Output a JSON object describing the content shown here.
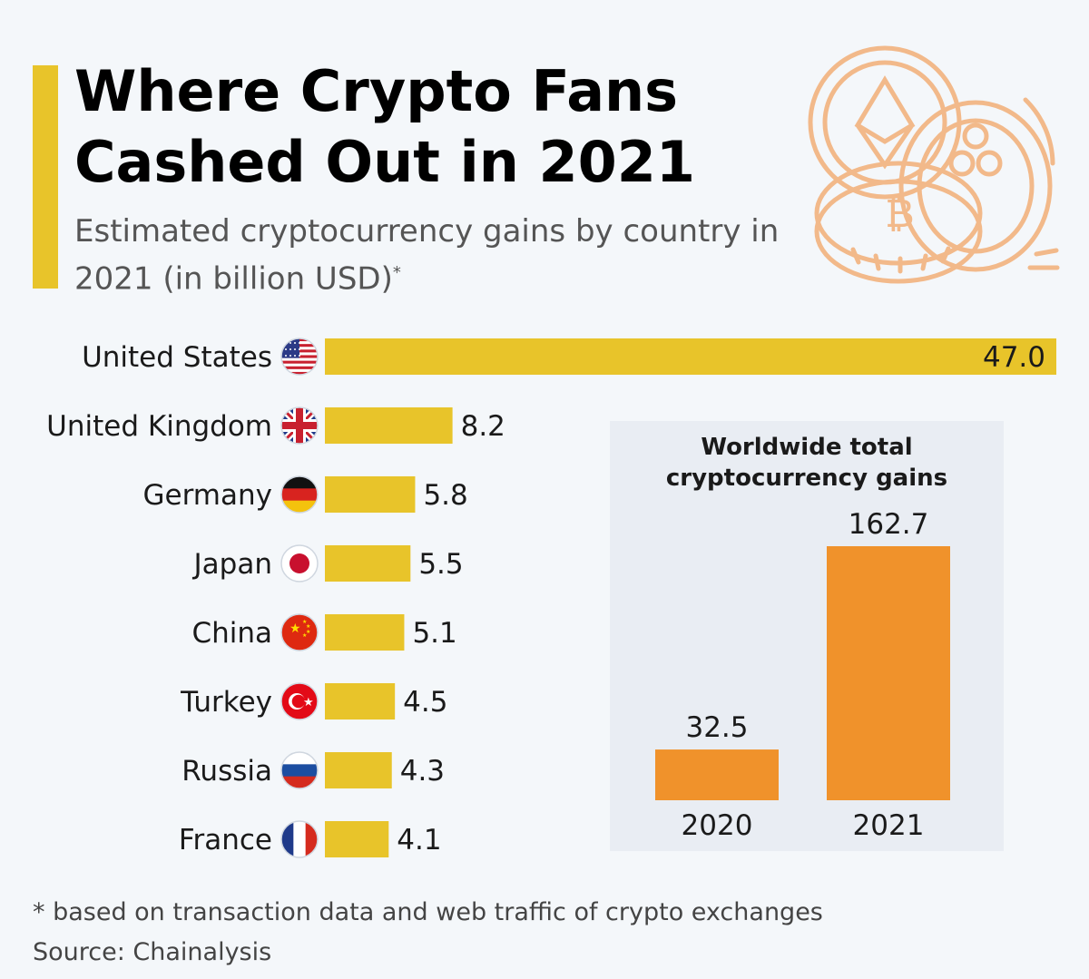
{
  "header": {
    "title": "Where Crypto Fans\nCashed Out in 2021",
    "subtitle": "Estimated cryptocurrency gains by country in 2021 (in billion USD)",
    "subtitle_mark": "*"
  },
  "footer": {
    "footnote": "* based on transaction data and web traffic of crypto exchanges",
    "source": "Source: Chainalysis"
  },
  "colors": {
    "main_bar": "#e8c42a",
    "inset_bar": "#f0922b",
    "illustration": "#f2b98a"
  },
  "chart_data": [
    {
      "type": "bar",
      "orientation": "horizontal",
      "title": "Where Crypto Fans Cashed Out in 2021",
      "unit": "billion USD",
      "categories": [
        "United States",
        "United Kingdom",
        "Germany",
        "Japan",
        "China",
        "Turkey",
        "Russia",
        "France"
      ],
      "flags": [
        "us-flag-icon",
        "uk-flag-icon",
        "germany-flag-icon",
        "japan-flag-icon",
        "china-flag-icon",
        "turkey-flag-icon",
        "russia-flag-icon",
        "france-flag-icon"
      ],
      "values": [
        47.0,
        8.2,
        5.8,
        5.5,
        5.1,
        4.5,
        4.3,
        4.1
      ],
      "value_labels": [
        "47.0",
        "8.2",
        "5.8",
        "5.5",
        "5.1",
        "4.5",
        "4.3",
        "4.1"
      ]
    },
    {
      "type": "bar",
      "orientation": "vertical",
      "title": "Worldwide total cryptocurrency gains",
      "categories": [
        "2020",
        "2021"
      ],
      "values": [
        32.5,
        162.7
      ],
      "value_labels": [
        "32.5",
        "162.7"
      ]
    }
  ]
}
